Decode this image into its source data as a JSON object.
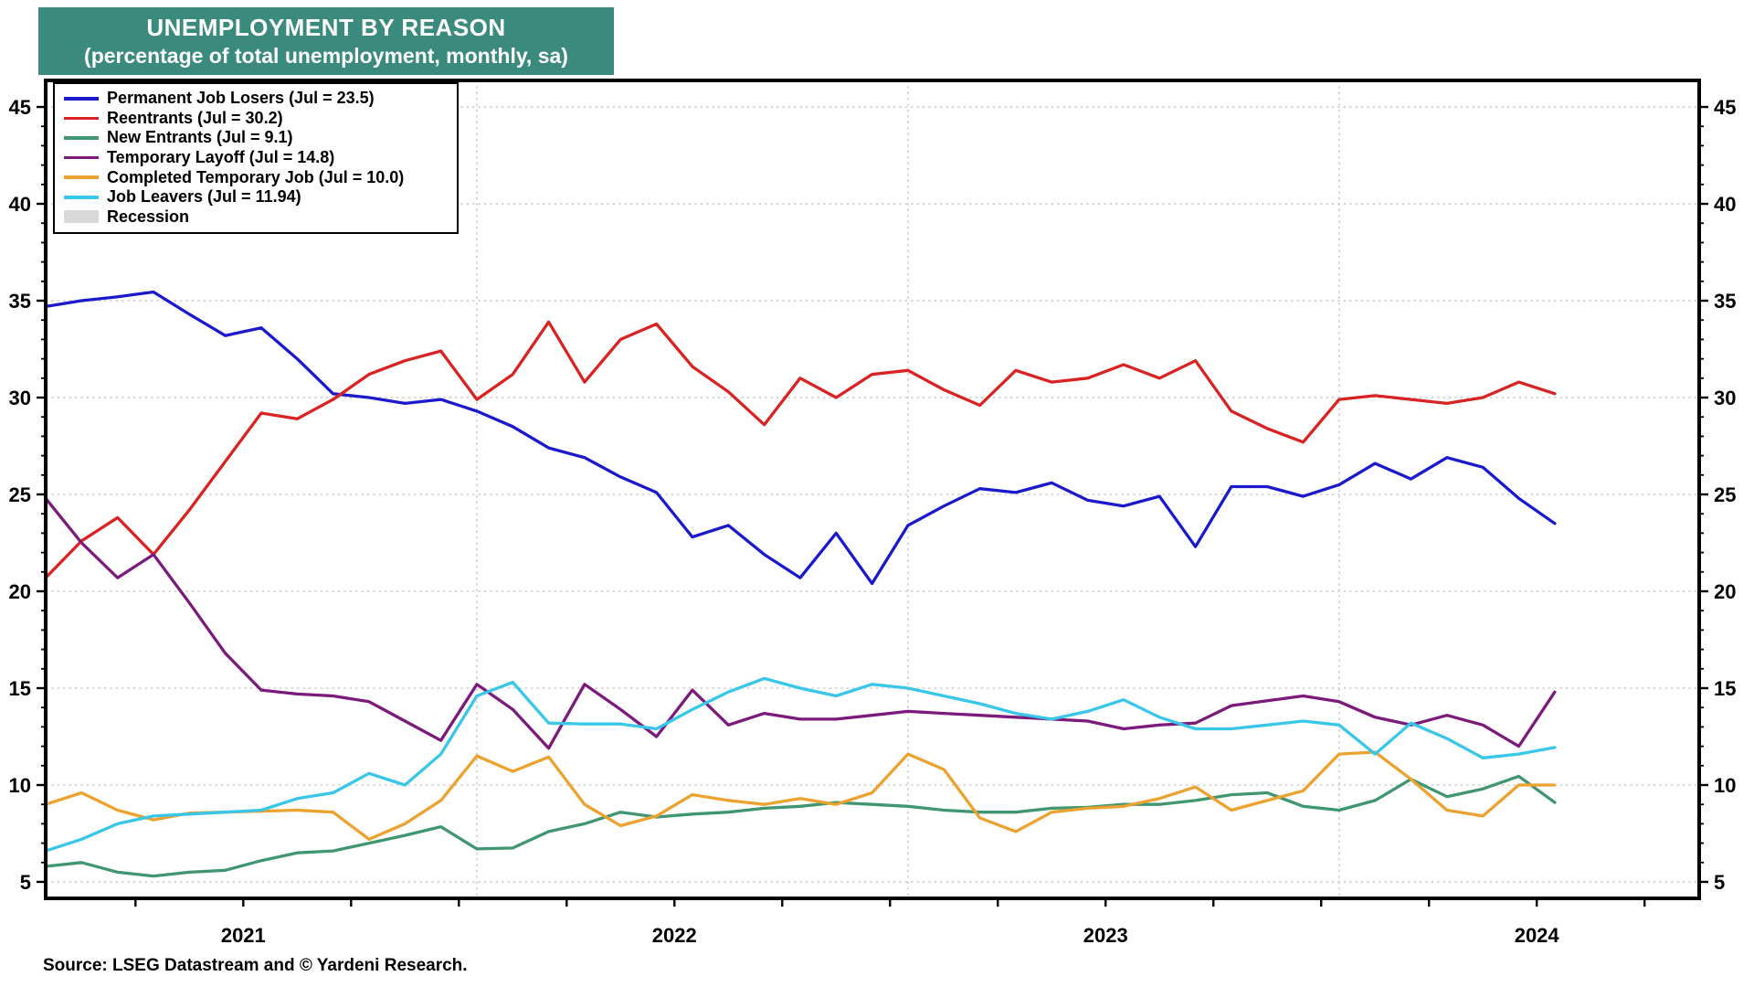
{
  "title": {
    "line1": "UNEMPLOYMENT BY REASON",
    "line2": "(percentage of total unemployment, monthly, sa)",
    "bg_color": "#3b8a7e",
    "text_color": "#ffffff"
  },
  "source_line": "Source: LSEG Datastream and © Yardeni Research.",
  "legend": {
    "items": [
      {
        "id": "permanent-job-losers",
        "label": "Permanent Job Losers (Jul = 23.5)",
        "swatch": "line",
        "color": "#1a1acc"
      },
      {
        "id": "reentrants",
        "label": "Reentrants (Jul = 30.2)",
        "swatch": "line",
        "color": "#d92323"
      },
      {
        "id": "new-entrants",
        "label": "New Entrants (Jul = 9.1)",
        "swatch": "line",
        "color": "#3f9670"
      },
      {
        "id": "temporary-layoff",
        "label": "Temporary Layoff (Jul = 14.8)",
        "swatch": "line",
        "color": "#7b1a7b"
      },
      {
        "id": "completed-temporary-job",
        "label": "Completed Temporary Job (Jul = 10.0)",
        "swatch": "line",
        "color": "#eca22e"
      },
      {
        "id": "job-leavers",
        "label": "Job Leavers (Jul = 11.94)",
        "swatch": "line",
        "color": "#38c6e9"
      },
      {
        "id": "recession",
        "label": "Recession",
        "swatch": "box",
        "color": "#d9d9d9"
      }
    ]
  },
  "chart_data": {
    "type": "line",
    "title": "UNEMPLOYMENT BY REASON (percentage of total unemployment, monthly, sa)",
    "x_unit": "month",
    "months": [
      "2021-01",
      "2021-02",
      "2021-03",
      "2021-04",
      "2021-05",
      "2021-06",
      "2021-07",
      "2021-08",
      "2021-09",
      "2021-10",
      "2021-11",
      "2021-12",
      "2022-01",
      "2022-02",
      "2022-03",
      "2022-04",
      "2022-05",
      "2022-06",
      "2022-07",
      "2022-08",
      "2022-09",
      "2022-10",
      "2022-11",
      "2022-12",
      "2023-01",
      "2023-02",
      "2023-03",
      "2023-04",
      "2023-05",
      "2023-06",
      "2023-07",
      "2023-08",
      "2023-09",
      "2023-10",
      "2023-11",
      "2023-12",
      "2024-01",
      "2024-02",
      "2024-03",
      "2024-04",
      "2024-05",
      "2024-06",
      "2024-07"
    ],
    "series": [
      {
        "id": "permanent-job-losers",
        "name": "Permanent Job Losers",
        "color": "#1a1acc",
        "values": [
          34.7,
          35.0,
          35.2,
          35.45,
          34.3,
          33.2,
          33.6,
          32.0,
          30.2,
          30.0,
          29.7,
          29.9,
          29.3,
          28.5,
          27.4,
          26.9,
          25.9,
          25.1,
          22.8,
          23.4,
          21.9,
          20.7,
          23.0,
          20.4,
          23.4,
          24.4,
          25.3,
          25.1,
          25.6,
          24.7,
          24.4,
          24.9,
          22.3,
          25.4,
          25.4,
          24.9,
          25.5,
          26.6,
          25.8,
          26.9,
          26.4,
          24.8,
          23.5
        ]
      },
      {
        "id": "reentrants",
        "name": "Reentrants",
        "color": "#d92323",
        "values": [
          20.7,
          22.6,
          23.8,
          21.9,
          24.2,
          26.7,
          29.2,
          28.9,
          29.9,
          31.2,
          31.9,
          32.4,
          29.9,
          31.2,
          33.9,
          30.8,
          33.0,
          33.8,
          31.6,
          30.3,
          28.6,
          31.0,
          30.0,
          31.2,
          31.4,
          30.4,
          29.6,
          31.4,
          30.8,
          31.0,
          31.7,
          31.0,
          31.9,
          29.3,
          28.4,
          27.7,
          29.9,
          30.1,
          29.9,
          29.7,
          30.0,
          30.8,
          30.2
        ]
      },
      {
        "id": "new-entrants",
        "name": "New Entrants",
        "color": "#3f9670",
        "values": [
          5.8,
          6.0,
          5.5,
          5.3,
          5.5,
          5.6,
          6.1,
          6.5,
          6.6,
          7.0,
          7.4,
          7.85,
          6.7,
          6.75,
          7.6,
          8.0,
          8.6,
          8.35,
          8.5,
          8.6,
          8.8,
          8.9,
          9.1,
          9.0,
          8.9,
          8.7,
          8.6,
          8.6,
          8.8,
          8.85,
          9.0,
          9.0,
          9.2,
          9.5,
          9.6,
          8.9,
          8.7,
          9.2,
          10.3,
          9.4,
          9.8,
          10.45,
          9.1
        ]
      },
      {
        "id": "temporary-layoff",
        "name": "Temporary Layoff",
        "color": "#7b1a7b",
        "values": [
          24.8,
          22.5,
          20.7,
          21.9,
          19.4,
          16.8,
          14.9,
          14.7,
          14.6,
          14.3,
          13.3,
          12.3,
          15.2,
          13.9,
          11.9,
          15.2,
          13.9,
          12.5,
          14.9,
          13.1,
          13.7,
          13.4,
          13.4,
          13.6,
          13.8,
          13.7,
          13.6,
          13.5,
          13.4,
          13.3,
          12.9,
          13.1,
          13.2,
          14.1,
          14.35,
          14.6,
          14.3,
          13.5,
          13.1,
          13.6,
          13.1,
          12.0,
          14.8
        ]
      },
      {
        "id": "completed-temporary-job",
        "name": "Completed Temporary Job",
        "color": "#eca22e",
        "values": [
          9.0,
          9.6,
          8.7,
          8.2,
          8.55,
          8.6,
          8.65,
          8.7,
          8.6,
          7.2,
          8.0,
          9.2,
          11.5,
          10.7,
          11.45,
          9.0,
          7.9,
          8.4,
          9.5,
          9.2,
          9.0,
          9.3,
          9.0,
          9.6,
          11.6,
          10.8,
          8.3,
          7.6,
          8.6,
          8.8,
          8.9,
          9.3,
          9.9,
          8.7,
          9.2,
          9.7,
          11.6,
          11.7,
          10.3,
          8.7,
          8.4,
          10.0,
          10.0
        ]
      },
      {
        "id": "job-leavers",
        "name": "Job Leavers",
        "color": "#38c6e9",
        "values": [
          6.6,
          7.2,
          8.0,
          8.4,
          8.5,
          8.6,
          8.7,
          9.3,
          9.6,
          10.6,
          10.0,
          11.6,
          14.6,
          15.3,
          13.2,
          13.15,
          13.15,
          12.9,
          13.9,
          14.8,
          15.5,
          15.0,
          14.6,
          15.2,
          15.0,
          14.6,
          14.2,
          13.7,
          13.4,
          13.8,
          14.4,
          13.5,
          12.9,
          12.9,
          13.1,
          13.3,
          13.1,
          11.6,
          13.2,
          12.4,
          11.4,
          11.6,
          11.94
        ]
      }
    ],
    "y_ticks": [
      5,
      10,
      15,
      20,
      25,
      30,
      35,
      40,
      45
    ],
    "y_tick_labels": [
      "5",
      "10",
      "15",
      "20",
      "25",
      "30",
      "35",
      "40",
      "45"
    ],
    "ylim": [
      4.15,
      46.37
    ],
    "y_axis_sides": "both",
    "x_year_labels": [
      {
        "label": "2021",
        "month_index": 5.5
      },
      {
        "label": "2022",
        "month_index": 17.5
      },
      {
        "label": "2023",
        "month_index": 29.5
      },
      {
        "label": "2024",
        "month_index": 41.5
      }
    ],
    "vertical_gridline_month_indices": [
      12,
      24,
      36
    ],
    "grid": {
      "style": "dotted",
      "color": "#c9c9c9"
    },
    "legend_position": "top-left-inside",
    "frame_color": "#000000",
    "recession_shading": []
  }
}
